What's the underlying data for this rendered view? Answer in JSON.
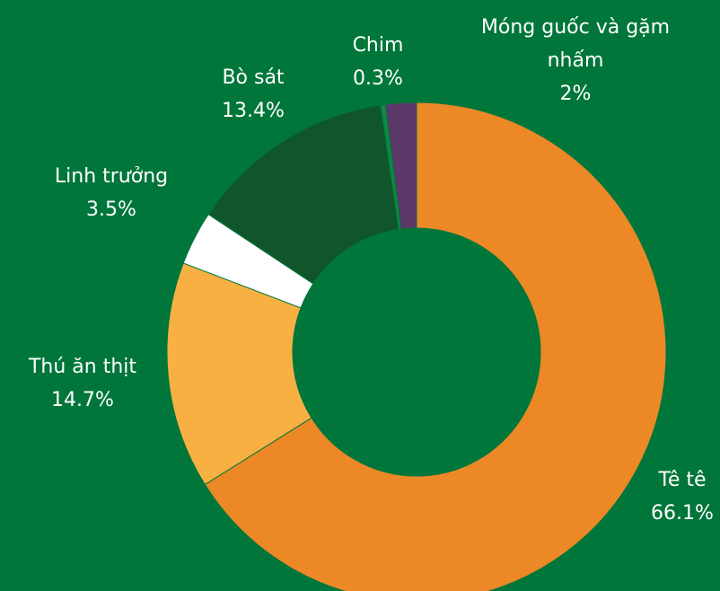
{
  "chart_data": {
    "type": "donut",
    "categories": [
      "Tê tê",
      "Thú ăn thịt",
      "Linh trưởng",
      "Bò sát",
      "Chim",
      "Móng guốc và gặm nhấm"
    ],
    "values": [
      66.1,
      14.7,
      3.5,
      13.4,
      0.3,
      2
    ],
    "value_labels": [
      "66.1%",
      "14.7%",
      "3.5%",
      "13.4%",
      "0.3%",
      "2%"
    ],
    "colors": [
      "#ec8826",
      "#f8b043",
      "#ffffff",
      "#11562b",
      "#0e8a45",
      "#5b3868"
    ]
  }
}
